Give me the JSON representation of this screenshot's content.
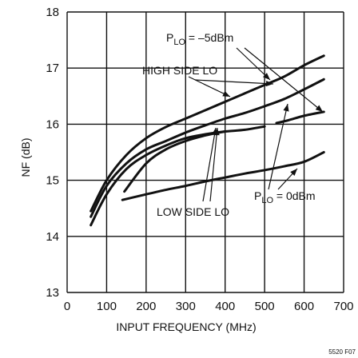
{
  "chart_data": {
    "type": "line",
    "title": "",
    "xlabel": "INPUT FREQUENCY (MHz)",
    "ylabel": "NF (dB)",
    "xlim": [
      0,
      700
    ],
    "ylim": [
      13,
      18
    ],
    "x_ticks": [
      0,
      100,
      200,
      300,
      400,
      500,
      600,
      700
    ],
    "y_ticks": [
      13,
      14,
      15,
      16,
      17,
      18
    ],
    "grid": true,
    "legend": "none",
    "series": [
      {
        "x": [
          60,
          100,
          150,
          200,
          250,
          300,
          350,
          400,
          450,
          500,
          550,
          600,
          650
        ],
        "y": [
          14.45,
          15.0,
          15.45,
          15.75,
          15.95,
          16.1,
          16.25,
          16.4,
          16.55,
          16.7,
          16.85,
          17.05,
          17.22
        ]
      },
      {
        "x": [
          60,
          100,
          150,
          200,
          250,
          300,
          350,
          400,
          450,
          500,
          550,
          600,
          650
        ],
        "y": [
          14.35,
          14.9,
          15.3,
          15.55,
          15.7,
          15.85,
          15.98,
          16.1,
          16.2,
          16.32,
          16.45,
          16.62,
          16.8
        ]
      },
      {
        "x": [
          60,
          100,
          150,
          200,
          250,
          300,
          350,
          400,
          450,
          500
        ],
        "y": [
          14.2,
          14.75,
          15.2,
          15.45,
          15.62,
          15.75,
          15.82,
          15.87,
          15.9,
          15.96
        ]
      },
      {
        "x": [
          145,
          200,
          250,
          300,
          350,
          400
        ],
        "y": [
          14.8,
          15.3,
          15.55,
          15.7,
          15.8,
          15.87
        ]
      },
      {
        "x": [
          530,
          560,
          600,
          650
        ],
        "y": [
          16.02,
          16.07,
          16.15,
          16.22
        ]
      },
      {
        "x": [
          140,
          200,
          250,
          300,
          350,
          400,
          450,
          500,
          550,
          600,
          650
        ],
        "y": [
          14.65,
          14.75,
          14.83,
          14.9,
          14.98,
          15.05,
          15.12,
          15.18,
          15.25,
          15.33,
          15.5
        ]
      }
    ],
    "annotations": {
      "plo_high_prefix": "P",
      "plo_high_sub": "LO",
      "plo_high_value": " = –5dBm",
      "high_side": "HIGH SIDE LO",
      "low_side": "LOW SIDE LO",
      "plo_low_prefix": "P",
      "plo_low_sub": "LO",
      "plo_low_value": " = 0dBm"
    },
    "figure_id": "5520 F07"
  }
}
